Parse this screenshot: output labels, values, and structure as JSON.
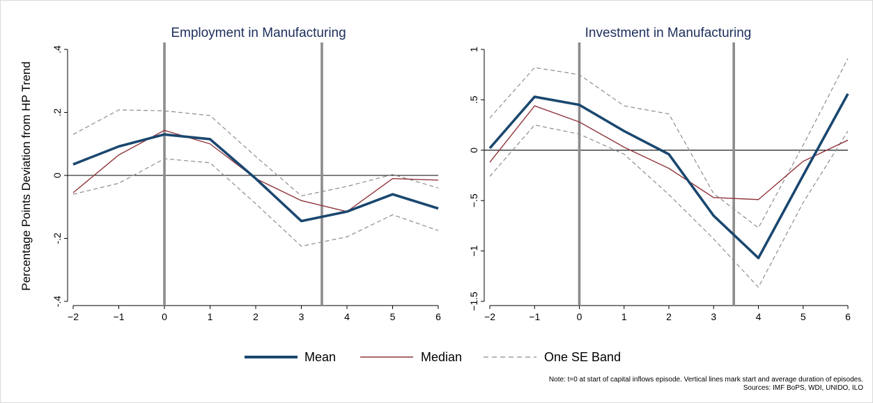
{
  "figure": {
    "ylabel": "Percentage Points Deviation from HP Trend",
    "note_line1": "Note: t=0 at start of capital inflows episode. Vertical lines mark start and average duration of episodes.",
    "note_line2": "Sources: IMF BoPS, WDI, UNIDO, ILO"
  },
  "colors": {
    "mean": "#1a476f",
    "median": "#90353b",
    "se_band": "#8c8c8c",
    "vertical_lines": "#8c8c8c",
    "zero_line": "#000000",
    "title": "#1c2e5c"
  },
  "legend": [
    {
      "key": "mean",
      "label": "Mean",
      "style": "thick-solid"
    },
    {
      "key": "median",
      "label": "Median",
      "style": "thin-solid"
    },
    {
      "key": "se_band",
      "label": "One SE Band",
      "style": "dashed"
    }
  ],
  "chart_data": [
    {
      "type": "line",
      "title": "Employment in Manufacturing",
      "xlabel": "",
      "ylabel": "Percentage Points Deviation from HP Trend",
      "x": [
        -2,
        -1,
        0,
        1,
        2,
        3,
        4,
        5,
        6
      ],
      "xlim": [
        -2,
        6
      ],
      "ylim": [
        -0.4,
        0.4
      ],
      "yticks": [
        -0.4,
        -0.2,
        0,
        0.2,
        0.4
      ],
      "ytick_labels": [
        "-.4",
        "-.2",
        "0",
        ".2",
        ".4"
      ],
      "xticks": [
        -2,
        -1,
        0,
        1,
        2,
        3,
        4,
        5,
        6
      ],
      "xtick_labels": [
        "−2",
        "−1",
        "0",
        "1",
        "2",
        "3",
        "4",
        "5",
        "6"
      ],
      "vlines": [
        0,
        3.45
      ],
      "hline": 0,
      "series": [
        {
          "name": "Mean",
          "key": "mean",
          "values": [
            0.035,
            0.092,
            0.13,
            0.115,
            -0.01,
            -0.145,
            -0.115,
            -0.06,
            -0.105
          ]
        },
        {
          "name": "Median",
          "key": "median",
          "values": [
            -0.055,
            0.065,
            0.143,
            0.1,
            -0.01,
            -0.08,
            -0.115,
            -0.01,
            -0.015
          ]
        },
        {
          "name": "One SE Band",
          "key": "se_upper",
          "values": [
            0.13,
            0.208,
            0.205,
            0.19,
            0.06,
            -0.065,
            -0.035,
            0.003,
            -0.04
          ]
        },
        {
          "name": "One SE Band",
          "key": "se_lower",
          "values": [
            -0.06,
            -0.025,
            0.053,
            0.04,
            -0.09,
            -0.225,
            -0.195,
            -0.125,
            -0.175
          ]
        }
      ]
    },
    {
      "type": "line",
      "title": "Investment in Manufacturing",
      "xlabel": "",
      "ylabel": "",
      "x": [
        -2,
        -1,
        0,
        1,
        2,
        3,
        4,
        5,
        6
      ],
      "xlim": [
        -2,
        6
      ],
      "ylim": [
        -1.5,
        1
      ],
      "yticks": [
        -1.5,
        -1,
        -0.5,
        0,
        0.5,
        1
      ],
      "ytick_labels": [
        "−1.5",
        "−1",
        "−.5",
        "0",
        ".5",
        "1"
      ],
      "xticks": [
        -2,
        -1,
        0,
        1,
        2,
        3,
        4,
        5,
        6
      ],
      "xtick_labels": [
        "−2",
        "−1",
        "0",
        "1",
        "2",
        "3",
        "4",
        "5",
        "6"
      ],
      "vlines": [
        0,
        3.45
      ],
      "hline": 0,
      "series": [
        {
          "name": "Mean",
          "key": "mean",
          "values": [
            0.02,
            0.53,
            0.45,
            0.19,
            -0.04,
            -0.65,
            -1.07,
            -0.25,
            0.56
          ]
        },
        {
          "name": "Median",
          "key": "median",
          "values": [
            -0.12,
            0.44,
            0.28,
            0.03,
            -0.18,
            -0.47,
            -0.49,
            -0.11,
            0.1
          ]
        },
        {
          "name": "One SE Band",
          "key": "se_upper",
          "values": [
            0.32,
            0.82,
            0.75,
            0.44,
            0.36,
            -0.43,
            -0.77,
            0.05,
            0.91
          ]
        },
        {
          "name": "One SE Band",
          "key": "se_lower",
          "values": [
            -0.26,
            0.25,
            0.16,
            -0.04,
            -0.44,
            -0.88,
            -1.36,
            -0.52,
            0.19
          ]
        }
      ]
    }
  ]
}
